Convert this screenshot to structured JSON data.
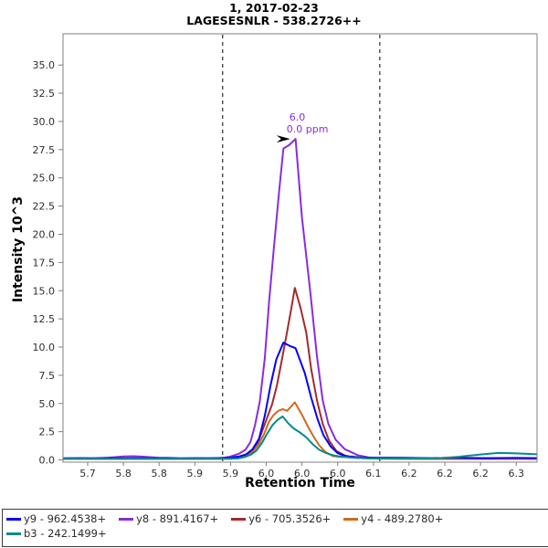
{
  "pane": {
    "title_line1": "1, 2017-02-23",
    "title_line2": "LAGESESNLR - 538.2726++"
  },
  "chart_data": {
    "type": "line",
    "title": "1, 2017-02-23 — LAGESESNLR - 538.2726++",
    "xlabel": "Retention Time",
    "ylabel": "Intensity 10^3",
    "xlim": [
      5.6655,
      6.3291
    ],
    "ylim_k": [
      -0.2,
      37.77
    ],
    "grid": false,
    "legend_position": "bottom",
    "frame_color": "#808080",
    "x_ticks": {
      "positions": [
        5.7,
        5.75,
        5.8,
        5.85,
        5.9,
        5.95,
        6.0,
        6.05,
        6.1,
        6.15,
        6.2,
        6.25,
        6.3
      ],
      "labels": [
        "5.7",
        "5.8",
        "5.8",
        "5.9",
        "5.9",
        "6.0",
        "6.0",
        "6.0",
        "6.1",
        "6.2",
        "6.2",
        "6.2",
        "6.3"
      ]
    },
    "y_ticks": {
      "positions": [
        0,
        2.5,
        5,
        7.5,
        10,
        12.5,
        15,
        17.5,
        20,
        22.5,
        25,
        27.5,
        30,
        32.5,
        35
      ],
      "labels": [
        "0.0",
        "2.5",
        "5.0",
        "7.5",
        "10.0",
        "12.5",
        "15.0",
        "17.5",
        "20.0",
        "22.5",
        "25.0",
        "27.5",
        "30.0",
        "32.5",
        "35.0"
      ]
    },
    "peak_boundaries": {
      "rt": [
        5.889,
        6.109
      ],
      "style": "vertical-dashed-black"
    },
    "annotation": {
      "rt": 5.99,
      "intensity_k": 28.45,
      "lines": [
        "6.0",
        "0.0 ppm"
      ],
      "color": "#8A2BE2",
      "arrow": "black-right-arrow-at-apex"
    },
    "draw_order": [
      "y8",
      "y6",
      "y4",
      "y9",
      "b3"
    ],
    "series": [
      {
        "id": "y9",
        "label": "y9 - 962.4538+",
        "color": "#0000FF",
        "points": [
          [
            5.6655,
            0.15
          ],
          [
            5.69,
            0.16
          ],
          [
            5.71,
            0.14
          ],
          [
            5.73,
            0.17
          ],
          [
            5.75,
            0.15
          ],
          [
            5.77,
            0.16
          ],
          [
            5.79,
            0.14
          ],
          [
            5.81,
            0.17
          ],
          [
            5.83,
            0.15
          ],
          [
            5.85,
            0.16
          ],
          [
            5.87,
            0.15
          ],
          [
            5.89,
            0.17
          ],
          [
            5.9,
            0.2
          ],
          [
            5.912,
            0.3
          ],
          [
            5.922,
            0.5
          ],
          [
            5.931,
            0.95
          ],
          [
            5.94,
            1.9
          ],
          [
            5.948,
            3.9
          ],
          [
            5.956,
            6.6
          ],
          [
            5.964,
            8.9
          ],
          [
            5.974,
            10.4
          ],
          [
            5.983,
            10.1
          ],
          [
            5.991,
            9.9
          ],
          [
            6.004,
            7.7
          ],
          [
            6.013,
            5.5
          ],
          [
            6.022,
            3.6
          ],
          [
            6.03,
            2.2
          ],
          [
            6.04,
            1.2
          ],
          [
            6.05,
            0.6
          ],
          [
            6.062,
            0.3
          ],
          [
            6.08,
            0.22
          ],
          [
            6.1,
            0.2
          ],
          [
            6.14,
            0.18
          ],
          [
            6.18,
            0.16
          ],
          [
            6.22,
            0.18
          ],
          [
            6.26,
            0.16
          ],
          [
            6.3,
            0.17
          ],
          [
            6.3291,
            0.16
          ]
        ]
      },
      {
        "id": "y8",
        "label": "y8 - 891.4167+",
        "color": "#8A2BE2",
        "points": [
          [
            5.6655,
            0.12
          ],
          [
            5.69,
            0.13
          ],
          [
            5.71,
            0.14
          ],
          [
            5.73,
            0.2
          ],
          [
            5.75,
            0.3
          ],
          [
            5.765,
            0.33
          ],
          [
            5.78,
            0.28
          ],
          [
            5.8,
            0.18
          ],
          [
            5.82,
            0.13
          ],
          [
            5.84,
            0.12
          ],
          [
            5.86,
            0.14
          ],
          [
            5.88,
            0.15
          ],
          [
            5.89,
            0.18
          ],
          [
            5.9,
            0.3
          ],
          [
            5.912,
            0.55
          ],
          [
            5.921,
            0.9
          ],
          [
            5.928,
            1.6
          ],
          [
            5.934,
            3.0
          ],
          [
            5.941,
            5.2
          ],
          [
            5.948,
            9.0
          ],
          [
            5.954,
            14.0
          ],
          [
            5.961,
            19.0
          ],
          [
            5.968,
            23.8
          ],
          [
            5.974,
            27.6
          ],
          [
            5.982,
            27.9
          ],
          [
            5.991,
            28.45
          ],
          [
            6.0,
            21.5
          ],
          [
            6.012,
            14.7
          ],
          [
            6.021,
            9.2
          ],
          [
            6.029,
            5.3
          ],
          [
            6.037,
            3.2
          ],
          [
            6.047,
            1.8
          ],
          [
            6.06,
            0.95
          ],
          [
            6.078,
            0.42
          ],
          [
            6.098,
            0.16
          ],
          [
            6.13,
            0.12
          ],
          [
            6.17,
            0.11
          ],
          [
            6.21,
            0.12
          ],
          [
            6.25,
            0.1
          ],
          [
            6.29,
            0.11
          ],
          [
            6.3291,
            0.1
          ]
        ]
      },
      {
        "id": "y6",
        "label": "y6 - 705.3526+",
        "color": "#A52A2A",
        "points": [
          [
            5.6655,
            0.1
          ],
          [
            5.7,
            0.11
          ],
          [
            5.74,
            0.1
          ],
          [
            5.78,
            0.11
          ],
          [
            5.82,
            0.1
          ],
          [
            5.86,
            0.11
          ],
          [
            5.9,
            0.12
          ],
          [
            5.912,
            0.2
          ],
          [
            5.922,
            0.35
          ],
          [
            5.93,
            0.7
          ],
          [
            5.937,
            1.3
          ],
          [
            5.944,
            2.5
          ],
          [
            5.951,
            3.7
          ],
          [
            5.958,
            4.9
          ],
          [
            5.965,
            6.6
          ],
          [
            5.972,
            8.9
          ],
          [
            5.979,
            11.3
          ],
          [
            5.985,
            13.4
          ],
          [
            5.99,
            15.25
          ],
          [
            5.998,
            13.5
          ],
          [
            6.006,
            11.3
          ],
          [
            6.013,
            8.0
          ],
          [
            6.021,
            5.3
          ],
          [
            6.029,
            3.2
          ],
          [
            6.038,
            1.7
          ],
          [
            6.048,
            0.8
          ],
          [
            6.06,
            0.4
          ],
          [
            6.075,
            0.2
          ],
          [
            6.095,
            0.12
          ],
          [
            6.13,
            0.1
          ],
          [
            6.18,
            0.1
          ],
          [
            6.23,
            0.09
          ],
          [
            6.28,
            0.1
          ],
          [
            6.3291,
            0.09
          ]
        ]
      },
      {
        "id": "y4",
        "label": "y4 - 489.2780+",
        "color": "#D2691E",
        "points": [
          [
            5.6655,
            0.08
          ],
          [
            5.7,
            0.09
          ],
          [
            5.74,
            0.08
          ],
          [
            5.78,
            0.09
          ],
          [
            5.82,
            0.08
          ],
          [
            5.86,
            0.09
          ],
          [
            5.9,
            0.1
          ],
          [
            5.915,
            0.2
          ],
          [
            5.925,
            0.4
          ],
          [
            5.933,
            0.85
          ],
          [
            5.94,
            1.45
          ],
          [
            5.947,
            2.3
          ],
          [
            5.954,
            3.4
          ],
          [
            5.96,
            3.95
          ],
          [
            5.967,
            4.35
          ],
          [
            5.973,
            4.5
          ],
          [
            5.979,
            4.35
          ],
          [
            5.985,
            4.75
          ],
          [
            5.99,
            5.1
          ],
          [
            6.0,
            4.0
          ],
          [
            6.008,
            3.0
          ],
          [
            6.016,
            2.1
          ],
          [
            6.024,
            1.3
          ],
          [
            6.033,
            0.7
          ],
          [
            6.043,
            0.35
          ],
          [
            6.055,
            0.25
          ],
          [
            6.07,
            0.3
          ],
          [
            6.082,
            0.2
          ],
          [
            6.1,
            0.12
          ],
          [
            6.14,
            0.1
          ],
          [
            6.19,
            0.09
          ],
          [
            6.24,
            0.1
          ],
          [
            6.29,
            0.09
          ],
          [
            6.3291,
            0.09
          ]
        ]
      },
      {
        "id": "b3",
        "label": "b3 - 242.1499+",
        "color": "#008B8B",
        "points": [
          [
            5.6655,
            0.1
          ],
          [
            5.7,
            0.11
          ],
          [
            5.74,
            0.1
          ],
          [
            5.78,
            0.11
          ],
          [
            5.82,
            0.1
          ],
          [
            5.86,
            0.1
          ],
          [
            5.9,
            0.11
          ],
          [
            5.91,
            0.12
          ],
          [
            5.92,
            0.25
          ],
          [
            5.928,
            0.45
          ],
          [
            5.936,
            0.8
          ],
          [
            5.944,
            1.5
          ],
          [
            5.951,
            2.3
          ],
          [
            5.959,
            3.1
          ],
          [
            5.966,
            3.55
          ],
          [
            5.973,
            3.85
          ],
          [
            5.98,
            3.3
          ],
          [
            5.988,
            2.8
          ],
          [
            5.998,
            2.4
          ],
          [
            6.006,
            2.0
          ],
          [
            6.015,
            1.4
          ],
          [
            6.024,
            0.9
          ],
          [
            6.034,
            0.6
          ],
          [
            6.044,
            0.4
          ],
          [
            6.056,
            0.28
          ],
          [
            6.07,
            0.2
          ],
          [
            6.09,
            0.15
          ],
          [
            6.12,
            0.12
          ],
          [
            6.15,
            0.12
          ],
          [
            6.19,
            0.15
          ],
          [
            6.22,
            0.28
          ],
          [
            6.25,
            0.48
          ],
          [
            6.275,
            0.62
          ],
          [
            6.3,
            0.58
          ],
          [
            6.3291,
            0.5
          ]
        ]
      }
    ]
  }
}
